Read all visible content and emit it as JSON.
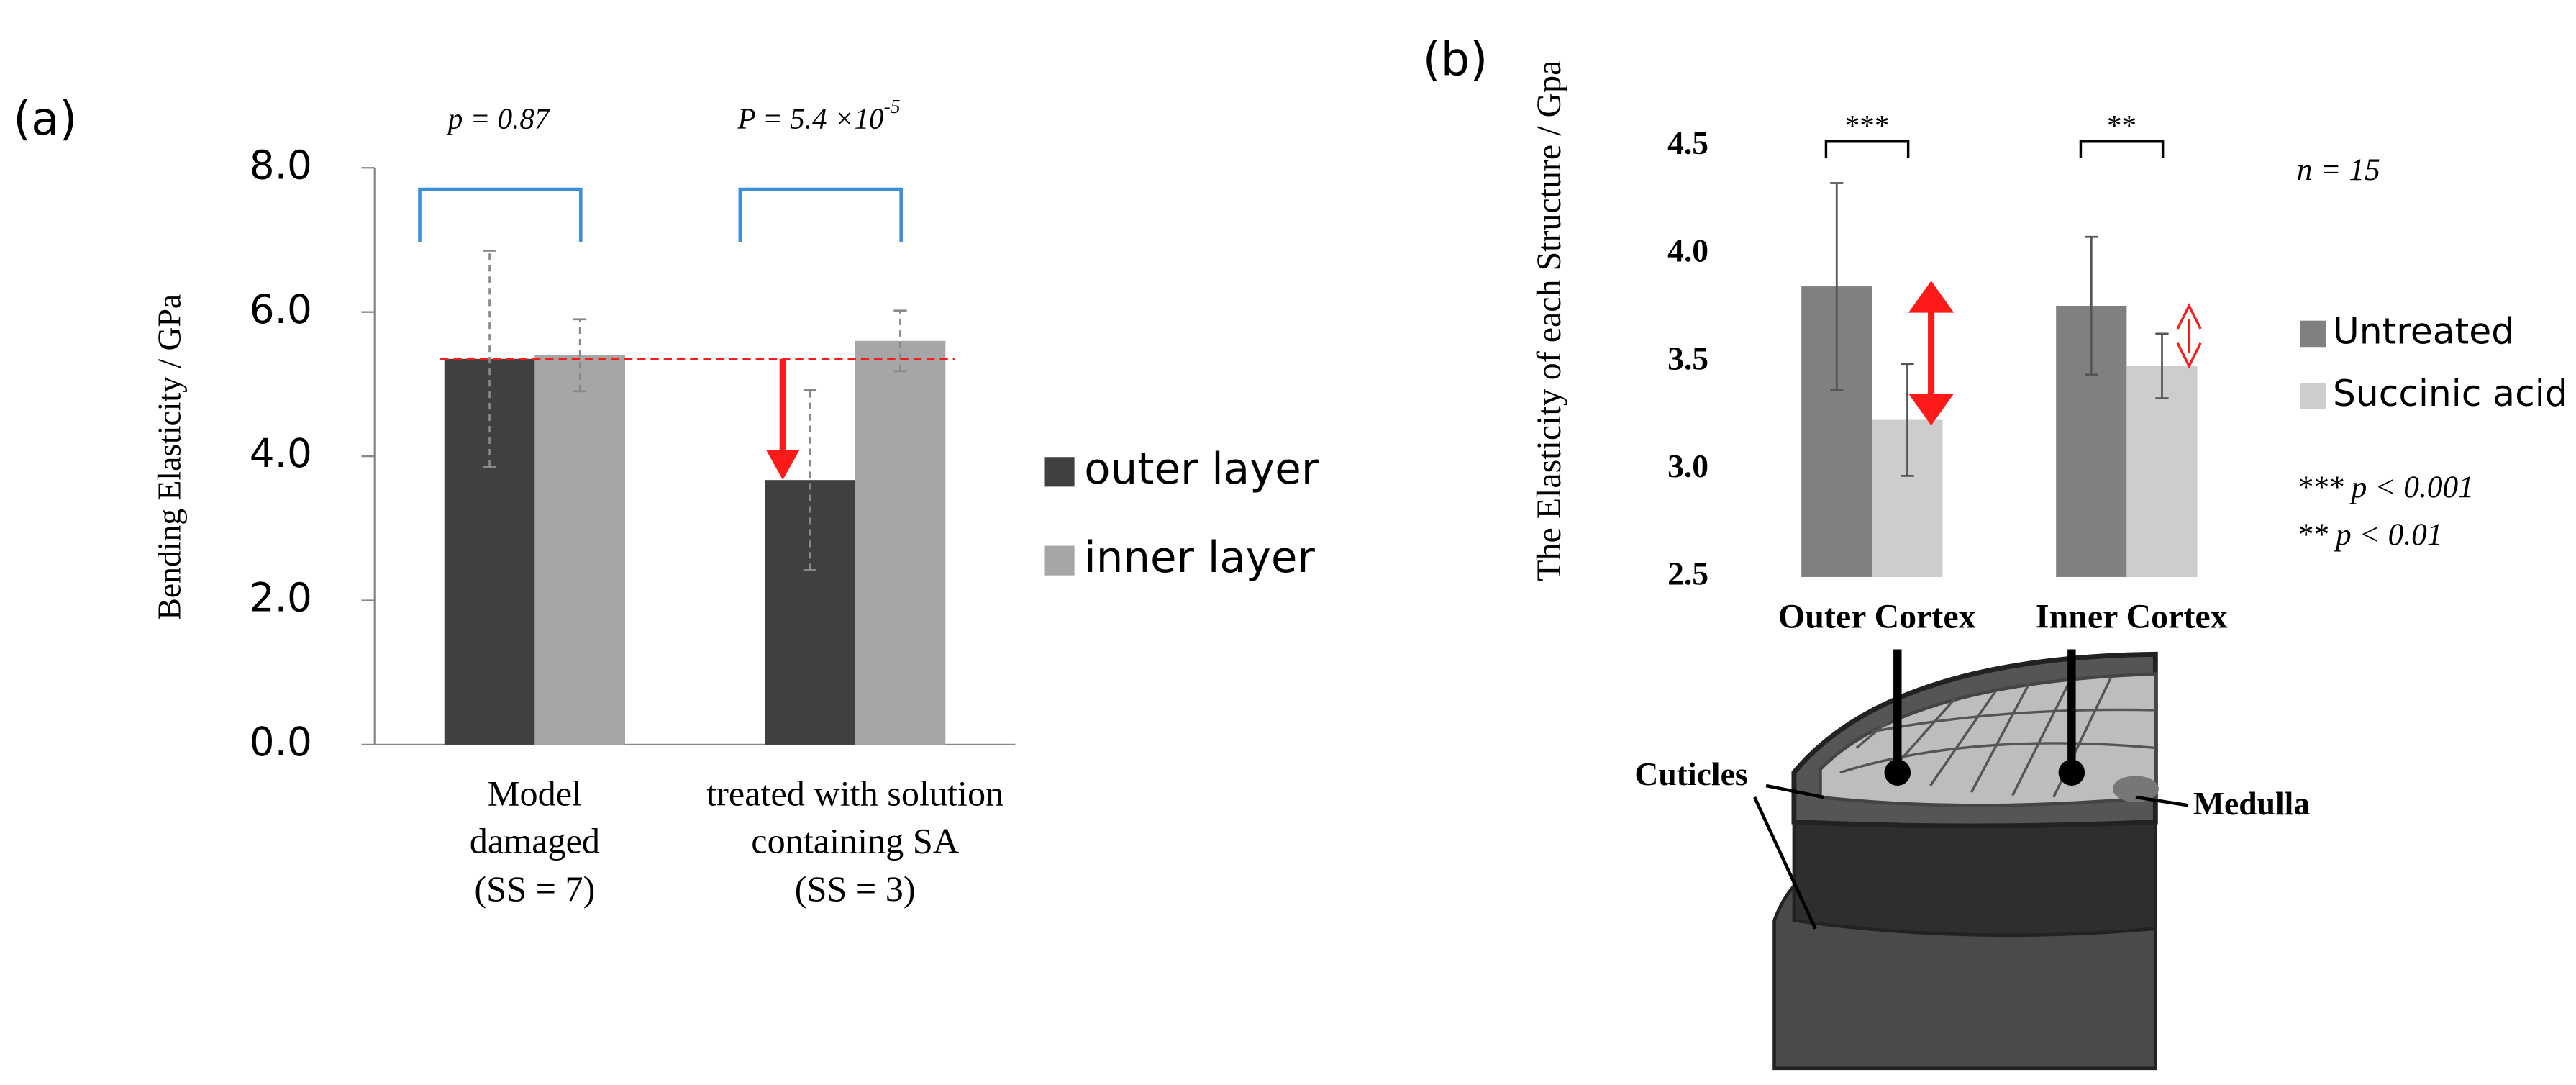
{
  "figure_labels": [
    "(a)",
    "(b)"
  ],
  "chart_data": [
    {
      "type": "bar",
      "y_label": "Bending Elasticity / GPa",
      "categories": [
        [
          "Model",
          "damaged",
          "(SS = 7)"
        ],
        [
          "treated with solution",
          "containing SA",
          "(SS = 3)"
        ]
      ],
      "series": [
        {
          "name": "outer layer",
          "color": "#404040",
          "values": [
            5.35,
            3.67
          ],
          "errors": [
            1.5,
            1.25
          ]
        },
        {
          "name": "inner layer",
          "color": "#a6a6a6",
          "values": [
            5.4,
            5.6
          ],
          "errors": [
            0.5,
            0.42
          ]
        }
      ],
      "ylim": [
        0,
        8
      ],
      "yticks": [
        {
          "value": 0,
          "label": "0.0"
        },
        {
          "value": 2,
          "label": "2.0"
        },
        {
          "value": 4,
          "label": "4.0"
        },
        {
          "value": 6,
          "label": "6.0"
        },
        {
          "value": 8,
          "label": "8.0"
        }
      ],
      "annotations": [
        {
          "text": "p = 0.87"
        },
        {
          "text": "P = 5.4 ×10",
          "superscript": "-5"
        }
      ]
    },
    {
      "type": "bar",
      "y_label": "The Elasticity of each Structure / Gpa",
      "categories": [
        "Outer Cortex",
        "Inner Cortex"
      ],
      "series": [
        {
          "name": "Untreated",
          "color": "#808080",
          "values": [
            3.85,
            3.76
          ],
          "errors": [
            0.48,
            0.32
          ]
        },
        {
          "name": "Succinic acid",
          "color": "#cdcdcd",
          "values": [
            3.23,
            3.48
          ],
          "errors": [
            0.26,
            0.15
          ]
        }
      ],
      "ylim": [
        2.5,
        4.5
      ],
      "yticks": [
        2.5,
        {
          "value": 3,
          "label": "3.0"
        },
        3.5,
        {
          "value": 4,
          "label": "4.0"
        },
        4.5
      ],
      "significance": [
        "***",
        "**"
      ],
      "notes": [
        "n = 15",
        "*** p < 0.001",
        "** p < 0.01"
      ]
    }
  ],
  "diagram": {
    "labels": [
      "Cuticles",
      "Medulla"
    ]
  }
}
